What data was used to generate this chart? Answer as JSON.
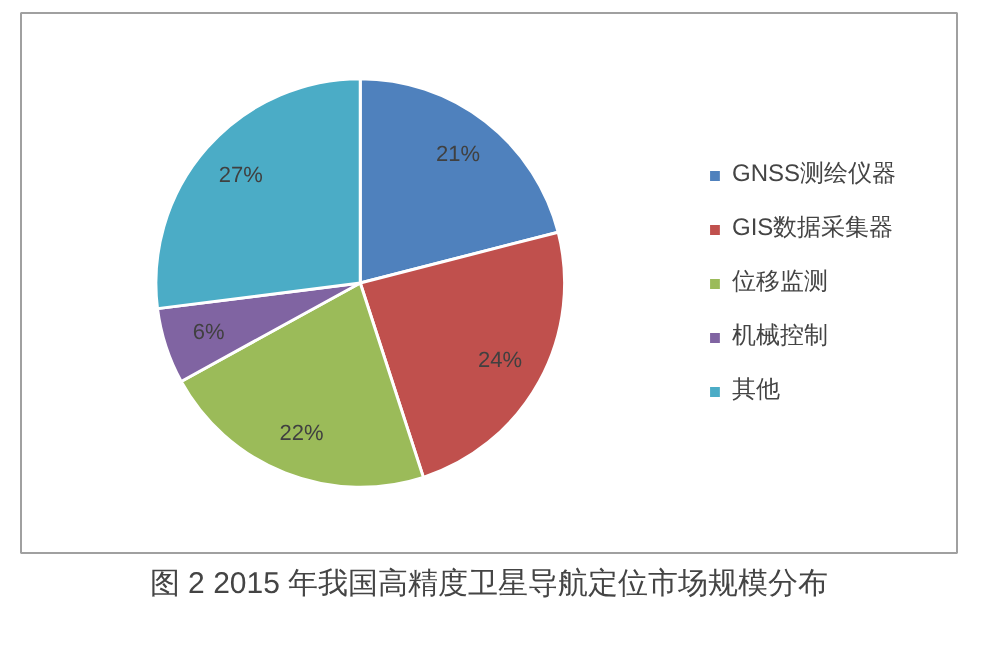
{
  "chart_data": {
    "type": "pie",
    "title": "图 2 2015 年我国高精度卫星导航定位市场规模分布",
    "categories": [
      "GNSS测绘仪器",
      "GIS数据采集器",
      "位移监测",
      "机械控制",
      "其他"
    ],
    "values": [
      21,
      24,
      22,
      6,
      27
    ],
    "colors": [
      "#4f81bd",
      "#c0504d",
      "#9bbb59",
      "#8064a2",
      "#4bacc6"
    ],
    "value_labels": [
      "21%",
      "24%",
      "22%",
      "6%",
      "27%"
    ],
    "legend": "right"
  }
}
